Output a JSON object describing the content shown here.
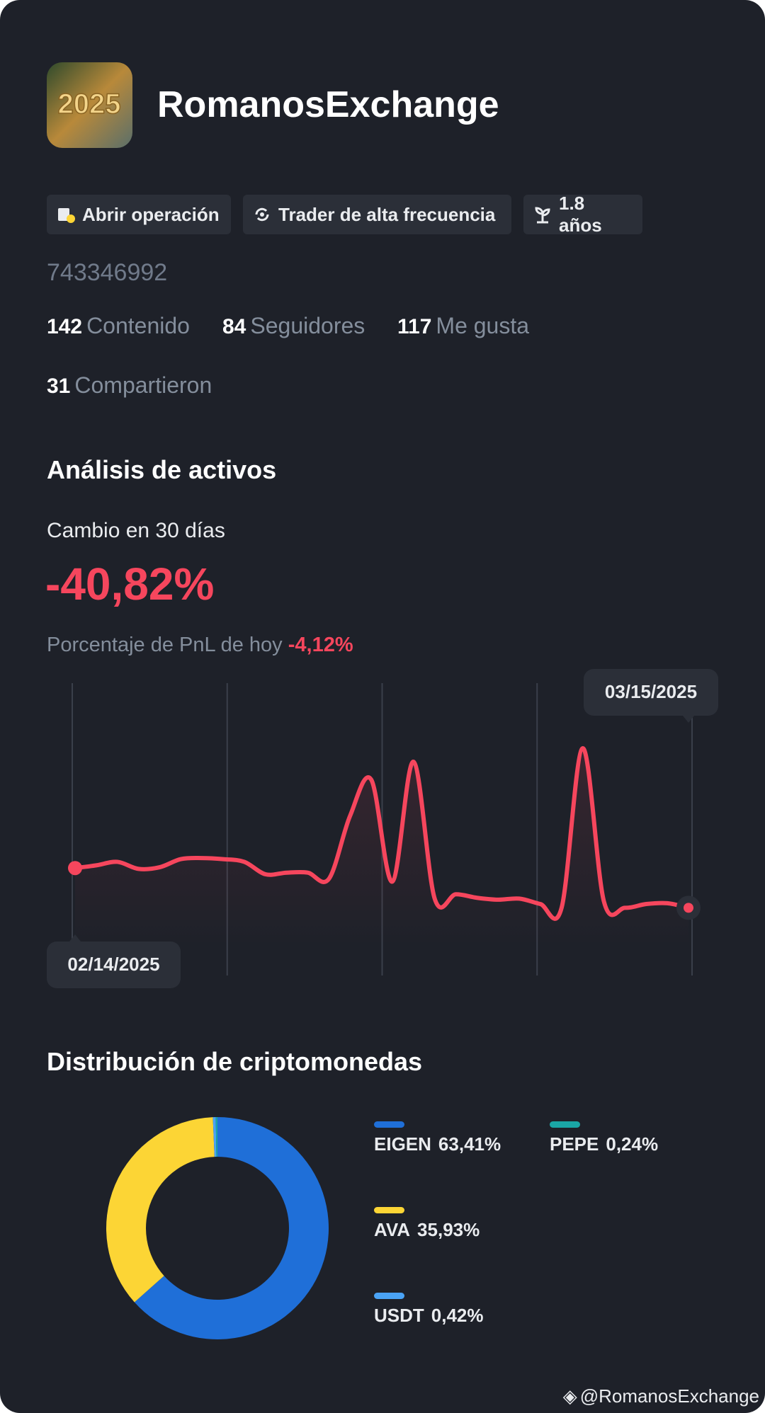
{
  "profile": {
    "name": "RomanosExchange",
    "tags": [
      "Abrir operación",
      "Trader de alta frecuencia",
      "1.8 años"
    ],
    "id": "743346992",
    "stats": [
      {
        "value": 142,
        "label": "Contenido"
      },
      {
        "value": 84,
        "label": "Seguidores"
      },
      {
        "value": 117,
        "label": "Me gusta"
      },
      {
        "value": 31,
        "label": "Compartieron"
      }
    ]
  },
  "assets": {
    "title": "Análisis de activos",
    "change_label": "Cambio en 30 días",
    "change": "-40,82%",
    "pnl_label": "Porcentaje de PnL de hoy",
    "pnl": "-4,12%"
  },
  "chart_data": [
    {
      "type": "line",
      "color": "#f6465d",
      "categories": [
        "02/14/2025",
        null,
        null,
        null,
        null,
        null,
        null,
        null,
        null,
        null,
        null,
        null,
        null,
        null,
        null,
        null,
        null,
        null,
        null,
        null,
        null,
        null,
        null,
        null,
        null,
        null,
        null,
        null,
        null,
        "03/15/2025"
      ],
      "values": [
        29,
        30,
        31.3,
        28.7,
        29.3,
        32.3,
        32.7,
        32.3,
        31.3,
        26.7,
        27.3,
        27.3,
        25,
        48.3,
        61.7,
        24,
        68.3,
        17.7,
        19.3,
        18,
        17.3,
        17.7,
        15.7,
        14.3,
        73.3,
        16.7,
        14.3,
        15.7,
        16,
        14.3
      ],
      "ylim": [
        0,
        100
      ]
    },
    {
      "type": "pie",
      "title": "Distribución de criptomonedas",
      "categories": [
        "EIGEN",
        "AVA",
        "USDT",
        "PEPE"
      ],
      "values": [
        63.41,
        35.93,
        0.42,
        0.24
      ],
      "value_labels": [
        "63,41%",
        "35,93%",
        "0,42%",
        "0,24%"
      ],
      "colors": [
        "#1f6fd8",
        "#fcd535",
        "#4aa3f5",
        "#1aa6a6"
      ]
    }
  ],
  "watermark": "@RomanosExchange"
}
